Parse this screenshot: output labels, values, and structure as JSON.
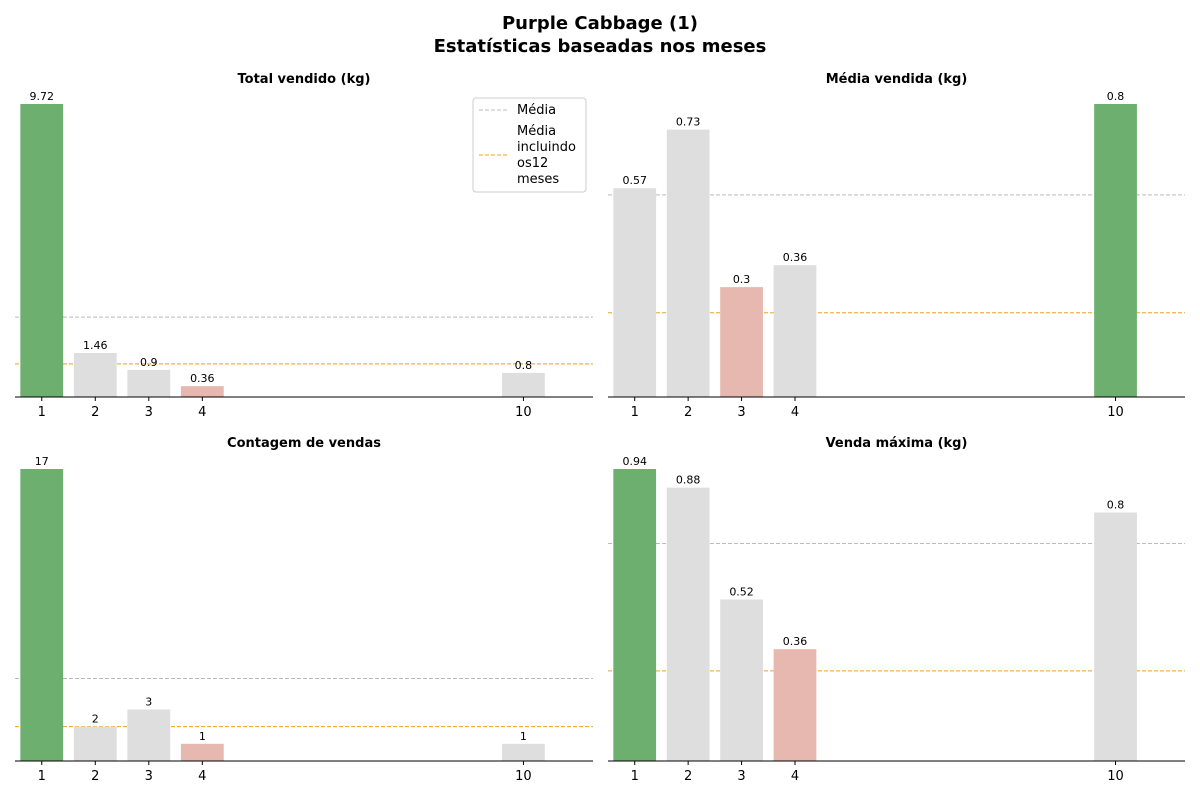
{
  "figure": {
    "title_line1": "Purple Cabbage (1)",
    "title_line2": "Estatísticas baseadas nos meses"
  },
  "legend": {
    "items": [
      {
        "label": "Média",
        "color": "#bbbbbb"
      },
      {
        "label": "Média\nincluindo\nos12\nmeses",
        "color": "#f0a020"
      }
    ]
  },
  "colors": {
    "max_bar": "#6daf6f",
    "min_bar": "#e6b8b0",
    "default_bar": "#dedede",
    "mean_line": "#bbbbbb",
    "mean12_line": "#f0a020"
  },
  "chart_data": [
    {
      "type": "bar",
      "title": "Total vendido (kg)",
      "categories": [
        "1",
        "2",
        "3",
        "4",
        "10"
      ],
      "x": [
        1,
        2,
        3,
        4,
        10
      ],
      "values": [
        9.72,
        1.46,
        0.9,
        0.36,
        0.8
      ],
      "value_labels": [
        "9.72",
        "1.46",
        "0.9",
        "0.36",
        "0.8"
      ],
      "highlight": [
        "max",
        "default",
        "default",
        "min",
        "default"
      ],
      "mean": 2.65,
      "mean_12_months": 1.1,
      "ylim": [
        0,
        10.2
      ],
      "legend": "top-right"
    },
    {
      "type": "bar",
      "title": "Média vendida (kg)",
      "categories": [
        "1",
        "2",
        "3",
        "4",
        "10"
      ],
      "x": [
        1,
        2,
        3,
        4,
        10
      ],
      "values": [
        0.57,
        0.73,
        0.3,
        0.36,
        0.8
      ],
      "value_labels": [
        "0.57",
        "0.73",
        "0.3",
        "0.36",
        "0.8"
      ],
      "highlight": [
        "default",
        "default",
        "min",
        "default",
        "max"
      ],
      "mean": 0.552,
      "mean_12_months": 0.23,
      "ylim": [
        0,
        0.84
      ]
    },
    {
      "type": "bar",
      "title": "Contagem de vendas",
      "categories": [
        "1",
        "2",
        "3",
        "4",
        "10"
      ],
      "x": [
        1,
        2,
        3,
        4,
        10
      ],
      "values": [
        17,
        2,
        3,
        1,
        1
      ],
      "value_labels": [
        "17",
        "2",
        "3",
        "1",
        "1"
      ],
      "highlight": [
        "max",
        "default",
        "default",
        "min",
        "default"
      ],
      "mean": 4.8,
      "mean_12_months": 2.0,
      "ylim": [
        0,
        17.85
      ]
    },
    {
      "type": "bar",
      "title": "Venda máxima (kg)",
      "categories": [
        "1",
        "2",
        "3",
        "4",
        "10"
      ],
      "x": [
        1,
        2,
        3,
        4,
        10
      ],
      "values": [
        0.94,
        0.88,
        0.52,
        0.36,
        0.8
      ],
      "value_labels": [
        "0.94",
        "0.88",
        "0.52",
        "0.36",
        "0.8"
      ],
      "highlight": [
        "max",
        "default",
        "default",
        "min",
        "default"
      ],
      "mean": 0.7,
      "mean_12_months": 0.29,
      "ylim": [
        0,
        0.987
      ]
    }
  ]
}
